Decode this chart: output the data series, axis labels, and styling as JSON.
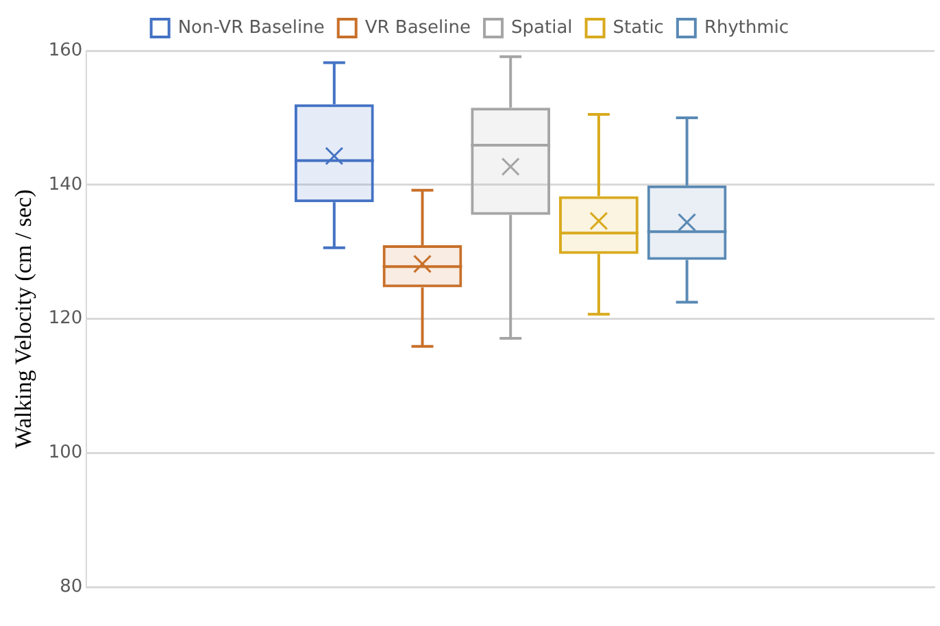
{
  "chart_data": {
    "type": "box",
    "ylabel": "Walking Velocity (cm / sec)",
    "categories": [
      null
    ],
    "series": [
      {
        "name": "Non-VR Baseline",
        "color": "#4472c4",
        "boxes": [
          {
            "low": 130.6,
            "q1": 137.4,
            "median": 143.6,
            "q3": 152.0,
            "high": 158.2,
            "mean": 144.3
          }
        ]
      },
      {
        "name": "VR Baseline",
        "color": "#c8702a",
        "boxes": [
          {
            "low": 115.9,
            "q1": 124.7,
            "median": 127.8,
            "q3": 131.0,
            "high": 139.2,
            "mean": 128.2
          }
        ]
      },
      {
        "name": "Spatial",
        "color": "#a5a5a5",
        "boxes": [
          {
            "low": 117.1,
            "q1": 135.5,
            "median": 145.9,
            "q3": 151.5,
            "high": 159.1,
            "mean": 142.7
          }
        ]
      },
      {
        "name": "Static",
        "color": "#d9aa1e",
        "boxes": [
          {
            "low": 120.7,
            "q1": 129.7,
            "median": 132.8,
            "q3": 138.3,
            "high": 150.5,
            "mean": 134.6
          }
        ]
      },
      {
        "name": "Rhythmic",
        "color": "#5a8ab5",
        "boxes": [
          {
            "low": 122.5,
            "q1": 128.8,
            "median": 133.0,
            "q3": 139.9,
            "high": 150.0,
            "mean": 134.4
          }
        ]
      }
    ],
    "ylim": [
      80,
      160
    ],
    "yticks": [
      80,
      100,
      120,
      140,
      160
    ],
    "grid": "y",
    "legend": "top"
  }
}
